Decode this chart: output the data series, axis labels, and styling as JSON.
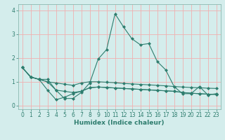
{
  "title": "",
  "xlabel": "Humidex (Indice chaleur)",
  "bg_color": "#d4edec",
  "grid_color": "#f0b0b0",
  "line_color": "#2e7d6e",
  "border_color": "#8ab8b0",
  "xlim": [
    -0.5,
    23.5
  ],
  "ylim": [
    -0.15,
    4.25
  ],
  "x_ticks": [
    0,
    1,
    2,
    3,
    4,
    5,
    6,
    7,
    8,
    9,
    10,
    11,
    12,
    13,
    14,
    15,
    16,
    17,
    18,
    19,
    20,
    21,
    22,
    23
  ],
  "y_ticks": [
    0,
    1,
    2,
    3,
    4
  ],
  "series": [
    [
      1.6,
      1.2,
      1.1,
      1.1,
      0.65,
      0.3,
      0.3,
      0.55,
      0.95,
      1.95,
      2.35,
      3.85,
      3.3,
      2.8,
      2.55,
      2.6,
      1.85,
      1.5,
      0.8,
      0.5,
      0.5,
      0.8,
      0.45,
      0.5
    ],
    [
      1.6,
      1.2,
      1.1,
      1.0,
      0.95,
      0.9,
      0.85,
      0.95,
      1.0,
      1.0,
      0.98,
      0.96,
      0.93,
      0.91,
      0.89,
      0.87,
      0.85,
      0.83,
      0.8,
      0.78,
      0.76,
      0.75,
      0.73,
      0.72
    ],
    [
      1.6,
      1.2,
      1.1,
      0.65,
      0.25,
      0.35,
      0.5,
      0.6,
      0.75,
      0.78,
      0.76,
      0.74,
      0.72,
      0.7,
      0.68,
      0.66,
      0.64,
      0.62,
      0.6,
      0.55,
      0.52,
      0.5,
      0.48,
      0.47
    ],
    [
      1.6,
      1.2,
      1.1,
      1.0,
      0.65,
      0.6,
      0.55,
      0.6,
      0.75,
      0.78,
      0.76,
      0.74,
      0.72,
      0.7,
      0.68,
      0.66,
      0.64,
      0.62,
      0.6,
      0.55,
      0.52,
      0.5,
      0.48,
      0.47
    ]
  ],
  "xlabel_fontsize": 6.5,
  "xlabel_color": "#2e7d6e",
  "tick_fontsize": 5.5,
  "tick_color": "#2e7d6e"
}
